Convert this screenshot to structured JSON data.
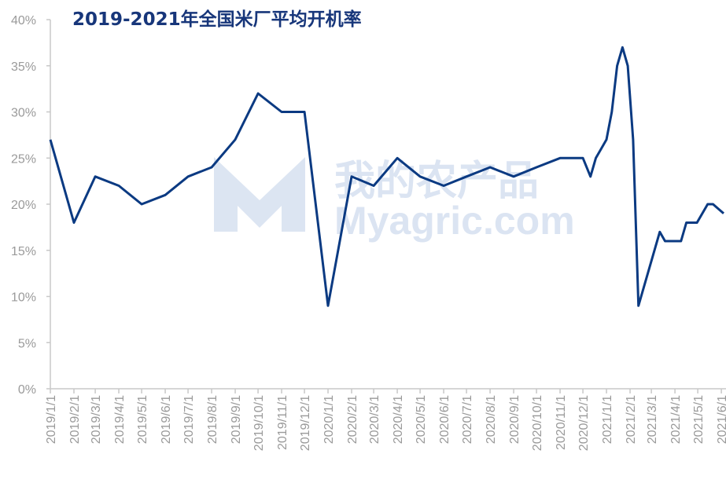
{
  "chart_data": {
    "type": "line",
    "title": "2019-2021年全国米厂平均开机率",
    "watermark": [
      "我的农产品",
      "Myagric.com"
    ],
    "x": [
      "2019/1/1",
      "2019/2/1",
      "2019/3/1",
      "2019/4/1",
      "2019/5/1",
      "2019/6/1",
      "2019/7/1",
      "2019/8/1",
      "2019/9/1",
      "2019/10/1",
      "2019/11/1",
      "2019/12/1",
      "2020/1/1",
      "2020/2/1",
      "2020/3/1",
      "2020/4/1",
      "2020/5/1",
      "2020/6/1",
      "2020/7/1",
      "2020/8/1",
      "2020/9/1",
      "2020/10/1",
      "2020/11/1",
      "2020/12/1",
      "2020/12/11",
      "2020/12/18",
      "2021/1/1",
      "2021/1/8",
      "2021/1/15",
      "2021/1/22",
      "2021/1/29",
      "2021/2/5",
      "2021/2/12",
      "2021/3/12",
      "2021/3/19",
      "2021/4/9",
      "2021/4/16",
      "2021/4/30",
      "2021/5/14",
      "2021/5/21",
      "2021/5/28",
      "2021/6/4"
    ],
    "series": [
      {
        "name": "平均开机率",
        "color": "#0b3a82",
        "values": [
          27,
          18,
          23,
          22,
          20,
          21,
          23,
          24,
          27,
          32,
          30,
          30,
          9,
          23,
          22,
          25,
          23,
          22,
          23,
          24,
          23,
          24,
          25,
          25,
          23,
          25,
          27,
          30,
          35,
          37,
          35,
          27,
          9,
          17,
          16,
          16,
          18,
          18,
          20,
          20,
          19.5,
          19
        ]
      }
    ],
    "xlim": [
      "2019/1/1",
      "2021/6/4"
    ],
    "xticks": [
      "2019/1/1",
      "2019/2/1",
      "2019/3/1",
      "2019/4/1",
      "2019/5/1",
      "2019/6/1",
      "2019/7/1",
      "2019/8/1",
      "2019/9/1",
      "2019/10/1",
      "2019/11/1",
      "2019/12/1",
      "2020/1/1",
      "2020/2/1",
      "2020/3/1",
      "2020/4/1",
      "2020/5/1",
      "2020/6/1",
      "2020/7/1",
      "2020/8/1",
      "2020/9/1",
      "2020/10/1",
      "2020/11/1",
      "2020/12/1",
      "2021/1/1",
      "2021/2/1",
      "2021/3/1",
      "2021/4/1",
      "2021/5/1",
      "2021/6/1"
    ],
    "ylim": [
      0,
      40
    ],
    "yticks": [
      {
        "value": 0,
        "label": "0%"
      },
      {
        "value": 5,
        "label": "5%"
      },
      {
        "value": 10,
        "label": "10%"
      },
      {
        "value": 15,
        "label": "15%"
      },
      {
        "value": 20,
        "label": "20%"
      },
      {
        "value": 25,
        "label": "25%"
      },
      {
        "value": 30,
        "label": "30%"
      },
      {
        "value": 35,
        "label": "35%"
      },
      {
        "value": 40,
        "label": "40%"
      }
    ],
    "grid": false
  }
}
